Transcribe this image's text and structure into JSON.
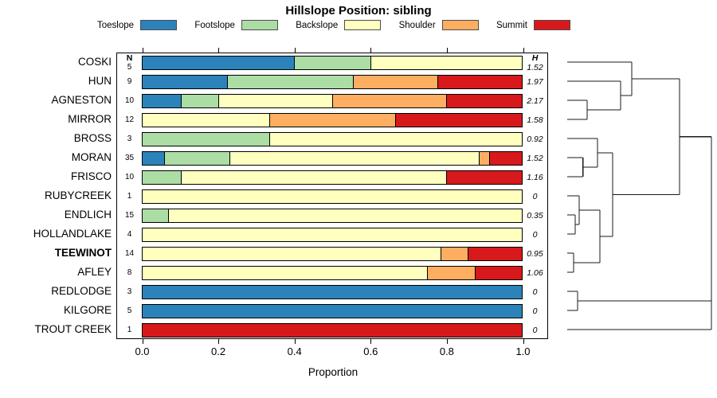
{
  "title": "Hillslope Position: sibling",
  "legend": [
    {
      "label": "Toeslope",
      "color": "#2b83ba"
    },
    {
      "label": "Footslope",
      "color": "#abdda4"
    },
    {
      "label": "Backslope",
      "color": "#ffffbf"
    },
    {
      "label": "Shoulder",
      "color": "#fdae61"
    },
    {
      "label": "Summit",
      "color": "#d7191c"
    }
  ],
  "columns": {
    "n_header": "N",
    "h_header": "H"
  },
  "axis": {
    "ticks": [
      "0.0",
      "0.2",
      "0.4",
      "0.6",
      "0.8",
      "1.0"
    ],
    "xlabel": "Proportion",
    "xlim": [
      0,
      1
    ]
  },
  "chart_data": {
    "type": "bar",
    "stacked": true,
    "orientation": "horizontal",
    "title": "Hillslope Position: sibling",
    "xlabel": "Proportion",
    "xlim": [
      0,
      1
    ],
    "categories": [
      "Toeslope",
      "Footslope",
      "Backslope",
      "Shoulder",
      "Summit"
    ],
    "colors": [
      "#2b83ba",
      "#abdda4",
      "#ffffbf",
      "#fdae61",
      "#d7191c"
    ],
    "sites": [
      {
        "name": "COSKI",
        "n": "5",
        "h": "1.52",
        "bold": false,
        "values": [
          0.4,
          0.2,
          0.4,
          0,
          0
        ]
      },
      {
        "name": "HUN",
        "n": "9",
        "h": "1.97",
        "bold": false,
        "values": [
          0.2222,
          0.3333,
          0,
          0.2222,
          0.2223
        ]
      },
      {
        "name": "AGNESTON",
        "n": "10",
        "h": "2.17",
        "bold": false,
        "values": [
          0.1,
          0.1,
          0.3,
          0.3,
          0.2
        ]
      },
      {
        "name": "MIRROR",
        "n": "12",
        "h": "1.58",
        "bold": false,
        "values": [
          0,
          0,
          0.3333,
          0.3334,
          0.3333
        ]
      },
      {
        "name": "BROSS",
        "n": "3",
        "h": "0.92",
        "bold": false,
        "values": [
          0,
          0.3333,
          0.6667,
          0,
          0
        ]
      },
      {
        "name": "MORAN",
        "n": "35",
        "h": "1.52",
        "bold": false,
        "values": [
          0.0571,
          0.1714,
          0.6572,
          0.0286,
          0.0857
        ]
      },
      {
        "name": "FRISCO",
        "n": "10",
        "h": "1.16",
        "bold": false,
        "values": [
          0,
          0.1,
          0.7,
          0,
          0.2
        ]
      },
      {
        "name": "RUBYCREEK",
        "n": "1",
        "h": "0",
        "bold": false,
        "values": [
          0,
          0,
          1,
          0,
          0
        ]
      },
      {
        "name": "ENDLICH",
        "n": "15",
        "h": "0.35",
        "bold": false,
        "values": [
          0,
          0.0667,
          0.9333,
          0,
          0
        ]
      },
      {
        "name": "HOLLANDLAKE",
        "n": "4",
        "h": "0",
        "bold": false,
        "values": [
          0,
          0,
          1,
          0,
          0
        ]
      },
      {
        "name": "TEEWINOT",
        "n": "14",
        "h": "0.95",
        "bold": true,
        "values": [
          0,
          0,
          0.7857,
          0.0714,
          0.1429
        ]
      },
      {
        "name": "AFLEY",
        "n": "8",
        "h": "1.06",
        "bold": false,
        "values": [
          0,
          0,
          0.75,
          0.125,
          0.125
        ]
      },
      {
        "name": "REDLODGE",
        "n": "3",
        "h": "0",
        "bold": false,
        "values": [
          1,
          0,
          0,
          0,
          0
        ]
      },
      {
        "name": "KILGORE",
        "n": "5",
        "h": "0",
        "bold": false,
        "values": [
          1,
          0,
          0,
          0,
          0
        ]
      },
      {
        "name": "TROUT CREEK",
        "n": "1",
        "h": "0",
        "bold": false,
        "values": [
          0,
          0,
          0,
          0,
          1
        ]
      }
    ]
  },
  "dendrogram": {
    "tree": {
      "h": 1.0,
      "c": [
        {
          "h": 0.779,
          "c": [
            {
              "h": 0.448,
              "c": [
                {
                  "leaf": "COSKI"
                },
                {
                  "h": 0.37,
                  "c": [
                    {
                      "leaf": "HUN"
                    },
                    {
                      "h": 0.138,
                      "c": [
                        {
                          "leaf": "AGNESTON"
                        },
                        {
                          "leaf": "MIRROR"
                        }
                      ]
                    }
                  ]
                }
              ]
            },
            {
              "h": 0.315,
              "c": [
                {
                  "h": 0.21,
                  "c": [
                    {
                      "leaf": "BROSS"
                    },
                    {
                      "h": 0.109,
                      "c": [
                        {
                          "leaf": "MORAN"
                        },
                        {
                          "leaf": "FRISCO"
                        }
                      ]
                    }
                  ]
                },
                {
                  "h": 0.227,
                  "c": [
                    {
                      "h": 0.083,
                      "c": [
                        {
                          "leaf": "RUBYCREEK"
                        },
                        {
                          "h": 0.055,
                          "c": [
                            {
                              "leaf": "ENDLICH"
                            },
                            {
                              "leaf": "HOLLANDLAKE"
                            }
                          ]
                        }
                      ]
                    },
                    {
                      "h": 0.044,
                      "c": [
                        {
                          "leaf": "TEEWINOT"
                        },
                        {
                          "leaf": "AFLEY"
                        }
                      ]
                    }
                  ]
                }
              ]
            }
          ]
        },
        {
          "h": 1.0,
          "c": [
            {
              "h": 0.072,
              "c": [
                {
                  "leaf": "REDLODGE"
                },
                {
                  "leaf": "KILGORE"
                }
              ]
            },
            {
              "leaf": "TROUT CREEK"
            }
          ]
        }
      ]
    }
  }
}
